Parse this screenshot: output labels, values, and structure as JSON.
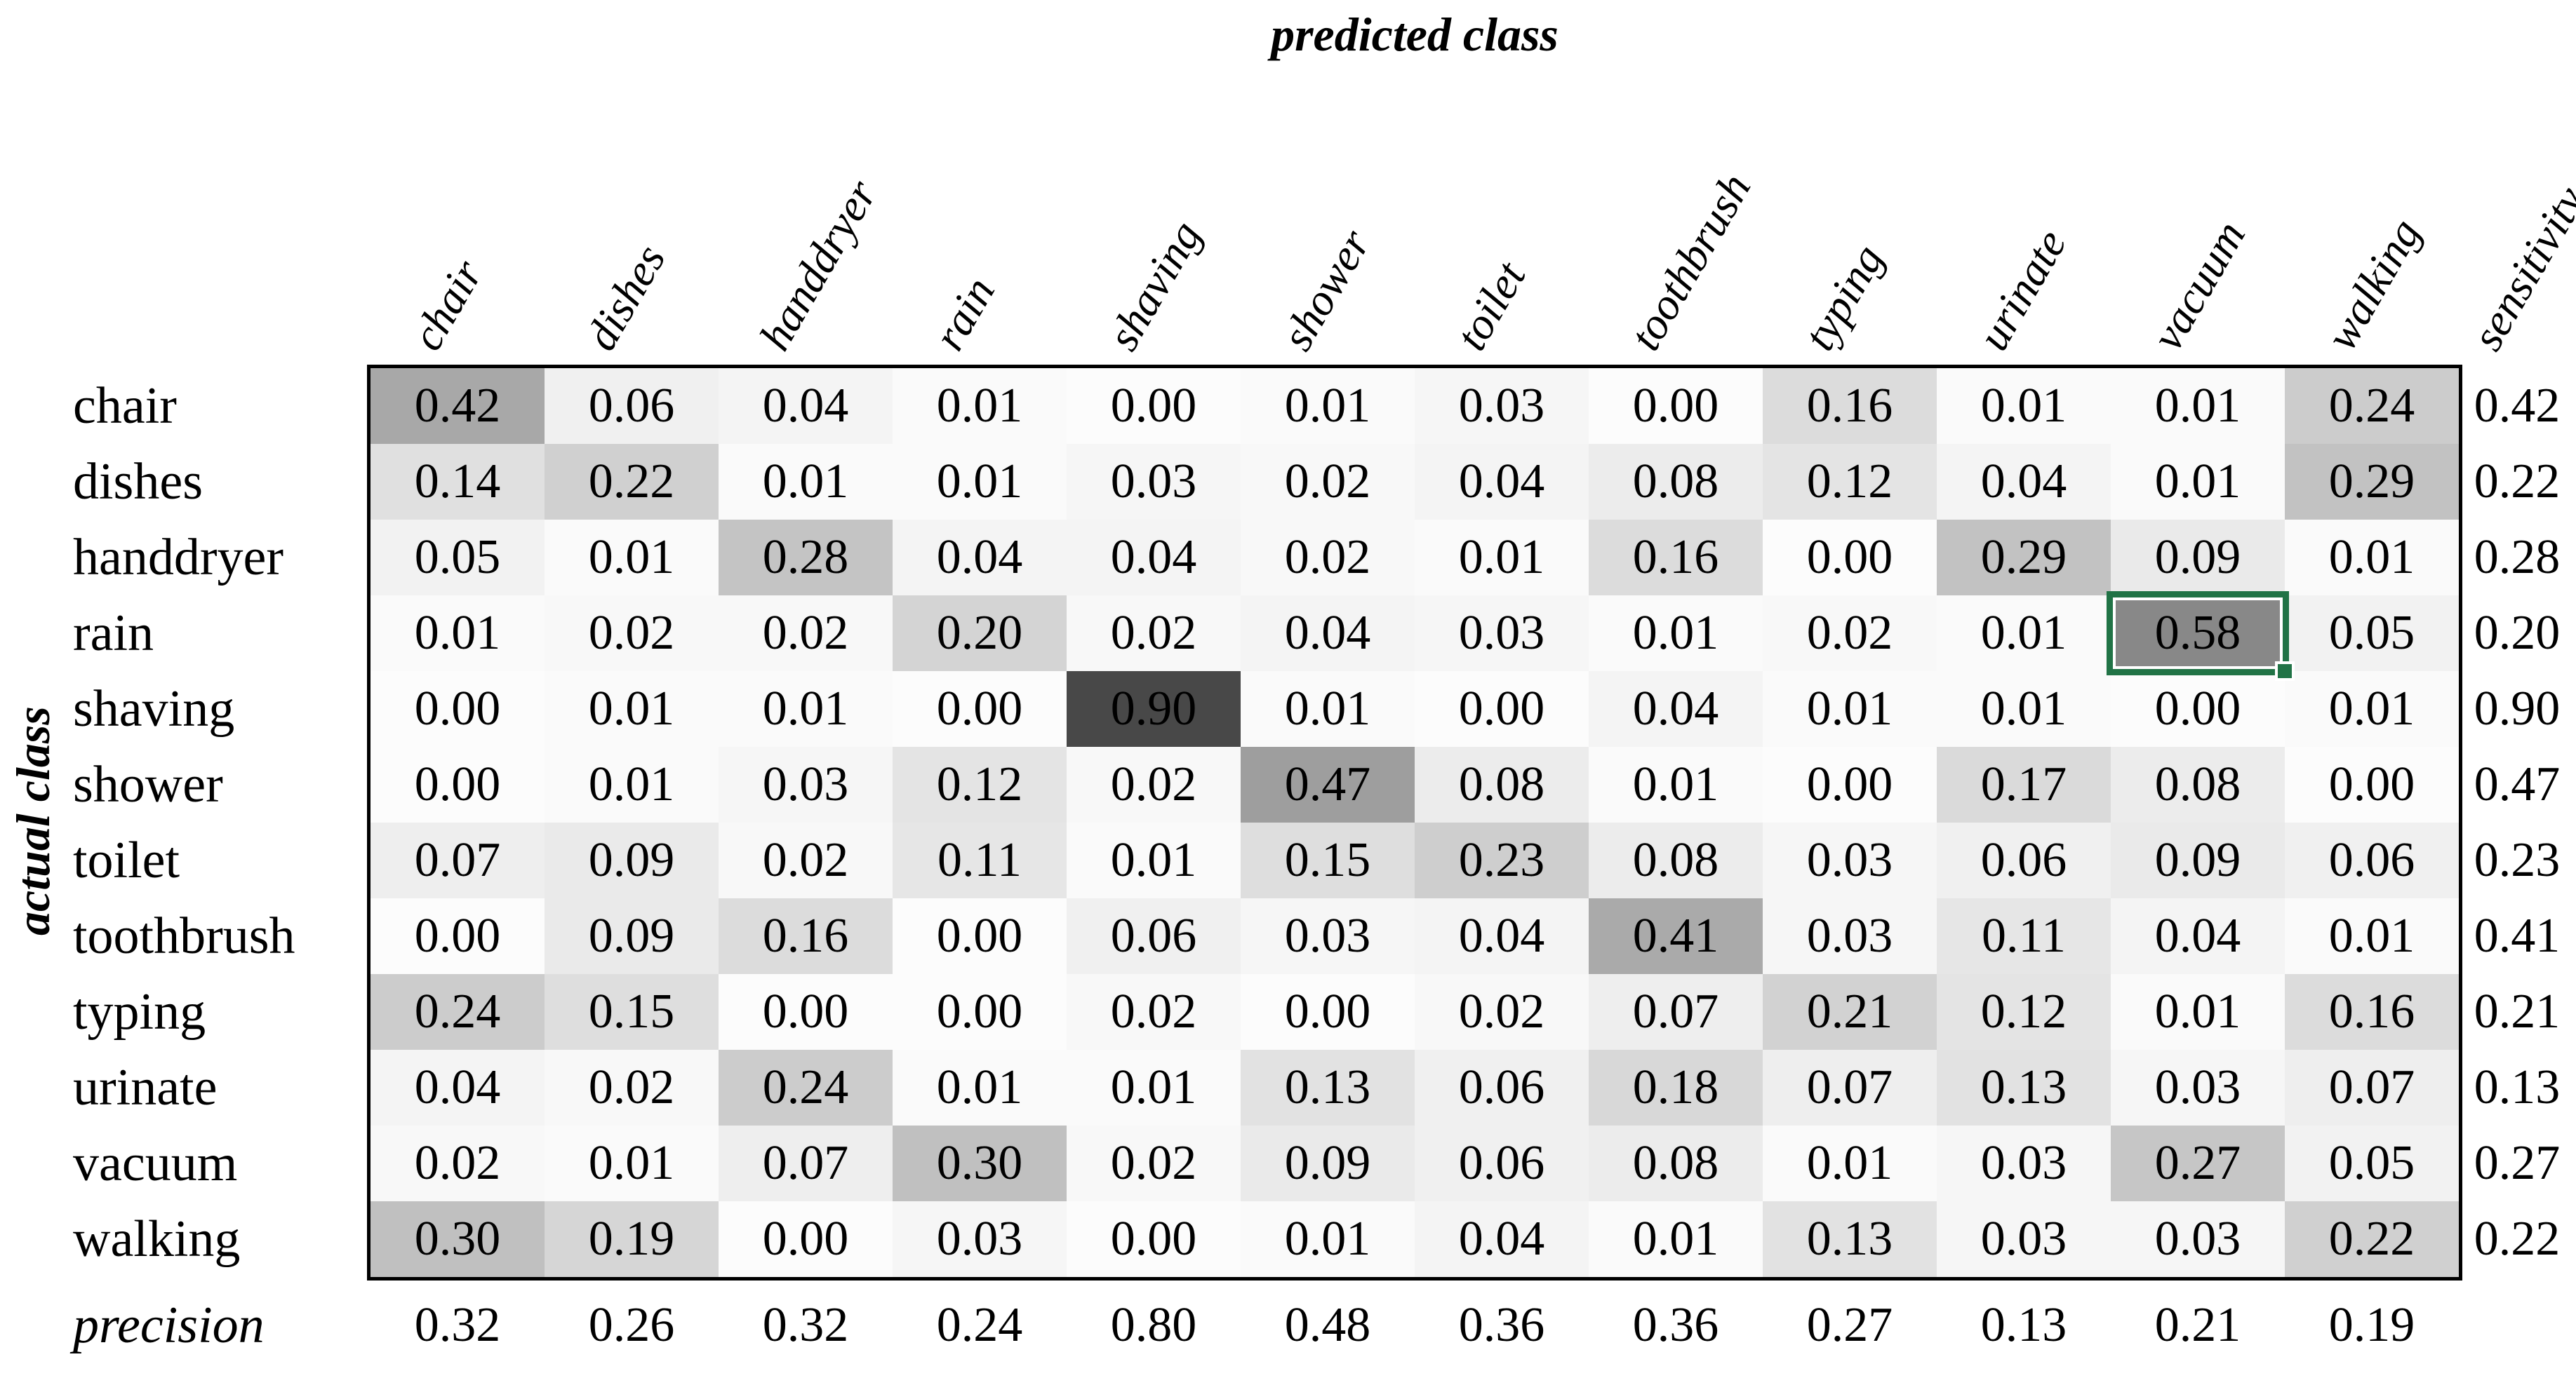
{
  "titles": {
    "top": "predicted class",
    "left": "actual class"
  },
  "chart_data": {
    "type": "heatmap",
    "xlabel": "predicted class",
    "ylabel": "actual class",
    "columns": [
      "chair",
      "dishes",
      "handdryer",
      "rain",
      "shaving",
      "shower",
      "toilet",
      "toothbrush",
      "typing",
      "urinate",
      "vacuum",
      "walking"
    ],
    "rows": [
      "chair",
      "dishes",
      "handdryer",
      "rain",
      "shaving",
      "shower",
      "toilet",
      "toothbrush",
      "typing",
      "urinate",
      "vacuum",
      "walking"
    ],
    "sensitivity_label": "sensitivity",
    "precision_label": "precision",
    "matrix": [
      [
        0.42,
        0.06,
        0.04,
        0.01,
        0.0,
        0.01,
        0.03,
        0.0,
        0.16,
        0.01,
        0.01,
        0.24
      ],
      [
        0.14,
        0.22,
        0.01,
        0.01,
        0.03,
        0.02,
        0.04,
        0.08,
        0.12,
        0.04,
        0.01,
        0.29
      ],
      [
        0.05,
        0.01,
        0.28,
        0.04,
        0.04,
        0.02,
        0.01,
        0.16,
        0.0,
        0.29,
        0.09,
        0.01
      ],
      [
        0.01,
        0.02,
        0.02,
        0.2,
        0.02,
        0.04,
        0.03,
        0.01,
        0.02,
        0.01,
        0.58,
        0.05
      ],
      [
        0.0,
        0.01,
        0.01,
        0.0,
        0.9,
        0.01,
        0.0,
        0.04,
        0.01,
        0.01,
        0.0,
        0.01
      ],
      [
        0.0,
        0.01,
        0.03,
        0.12,
        0.02,
        0.47,
        0.08,
        0.01,
        0.0,
        0.17,
        0.08,
        0.0
      ],
      [
        0.07,
        0.09,
        0.02,
        0.11,
        0.01,
        0.15,
        0.23,
        0.08,
        0.03,
        0.06,
        0.09,
        0.06
      ],
      [
        0.0,
        0.09,
        0.16,
        0.0,
        0.06,
        0.03,
        0.04,
        0.41,
        0.03,
        0.11,
        0.04,
        0.01
      ],
      [
        0.24,
        0.15,
        0.0,
        0.0,
        0.02,
        0.0,
        0.02,
        0.07,
        0.21,
        0.12,
        0.01,
        0.16
      ],
      [
        0.04,
        0.02,
        0.24,
        0.01,
        0.01,
        0.13,
        0.06,
        0.18,
        0.07,
        0.13,
        0.03,
        0.07
      ],
      [
        0.02,
        0.01,
        0.07,
        0.3,
        0.02,
        0.09,
        0.06,
        0.08,
        0.01,
        0.03,
        0.27,
        0.05
      ],
      [
        0.3,
        0.19,
        0.0,
        0.03,
        0.0,
        0.01,
        0.04,
        0.01,
        0.13,
        0.03,
        0.03,
        0.22
      ]
    ],
    "sensitivity": [
      0.42,
      0.22,
      0.28,
      0.2,
      0.9,
      0.47,
      0.23,
      0.41,
      0.21,
      0.13,
      0.27,
      0.22
    ],
    "precision": [
      0.32,
      0.26,
      0.32,
      0.24,
      0.8,
      0.48,
      0.36,
      0.36,
      0.27,
      0.13,
      0.21,
      0.19
    ],
    "selected_cell": {
      "row": "rain",
      "column": "vacuum",
      "value": 0.58
    },
    "value_format": "0.00",
    "colors": {
      "cell_min": "#fcfcfc",
      "cell_max": "#484848",
      "selection": "#217346",
      "border": "#000000",
      "text": "#000000"
    },
    "grid": false,
    "legend_position": "none"
  }
}
